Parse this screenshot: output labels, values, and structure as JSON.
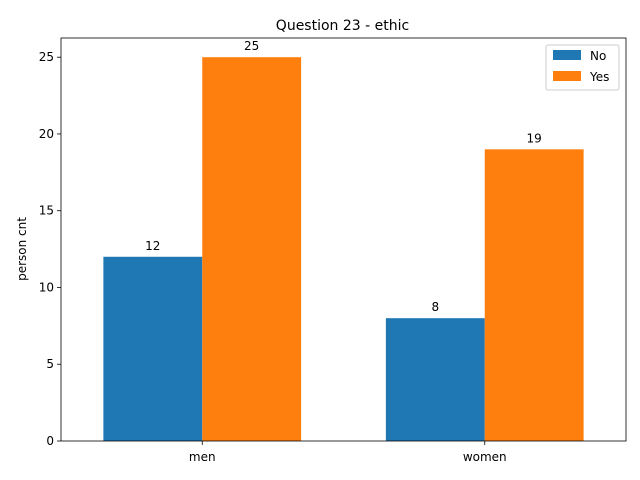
{
  "chart_data": {
    "type": "bar",
    "title": "Question 23 - ethic",
    "xlabel": "",
    "ylabel": "person cnt",
    "categories": [
      "men",
      "women"
    ],
    "series": [
      {
        "name": "No",
        "values": [
          12,
          8
        ],
        "color": "#1f77b4"
      },
      {
        "name": "Yes",
        "values": [
          25,
          19
        ],
        "color": "#ff7f0e"
      }
    ],
    "ylim": [
      0,
      26.25
    ],
    "yticks": [
      0,
      5,
      10,
      15,
      20,
      25
    ],
    "grid": false,
    "legend_position": "top-right",
    "data_labels": true
  }
}
